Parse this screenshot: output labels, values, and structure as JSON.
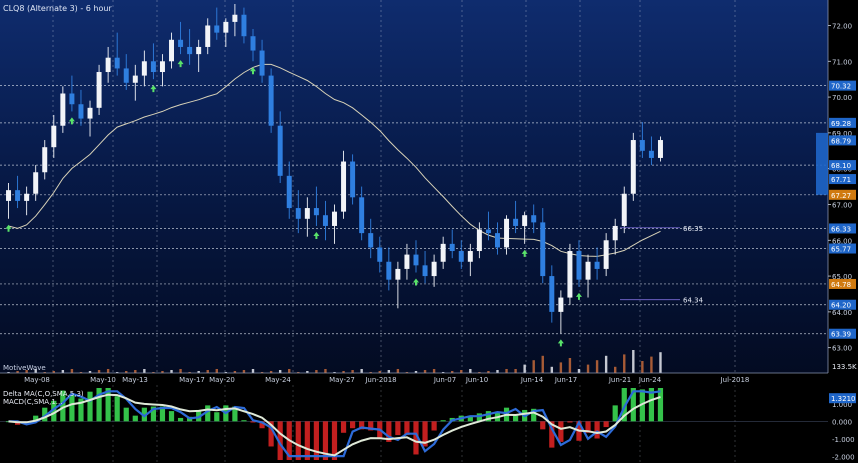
{
  "chart_data": {
    "type": "candlestick",
    "title": "CLQ8 (Alternate 3) - 6 hour",
    "watermark": "MotiveWave",
    "y_axis_ticks": [
      "72.00",
      "71.00",
      "70.00",
      "69.00",
      "68.00",
      "67.00",
      "66.00",
      "65.00",
      "64.00",
      "63.00"
    ],
    "y_range": [
      62.6,
      72.6
    ],
    "x_axis_labels": [
      "May-08",
      "May-10",
      "May-13",
      "May-17",
      "May-20",
      "May-24",
      "May-27",
      "Jun-2018",
      "Jun-07",
      "Jun-10",
      "Jun-14",
      "Jun-17",
      "Jun-21",
      "Jun-24",
      "Jul-2018"
    ],
    "price_labels": [
      {
        "text": "70.32",
        "value": 70.32,
        "color": "#1f66c9"
      },
      {
        "text": "69.28",
        "value": 69.28,
        "color": "#1f66c9"
      },
      {
        "text": "68.79",
        "value": 68.79,
        "color": "#1f66c9"
      },
      {
        "text": "68.10",
        "value": 68.1,
        "color": "#1f66c9"
      },
      {
        "text": "67.71",
        "value": 67.71,
        "color": "#1f66c9"
      },
      {
        "text": "67.27",
        "value": 67.27,
        "color": "#d07a10"
      },
      {
        "text": "66.33",
        "value": 66.33,
        "color": "#1f66c9"
      },
      {
        "text": "65.77",
        "value": 65.77,
        "color": "#1f66c9"
      },
      {
        "text": "64.78",
        "value": 64.78,
        "color": "#d07a10"
      },
      {
        "text": "64.20",
        "value": 64.2,
        "color": "#1f66c9"
      },
      {
        "text": "63.39",
        "value": 63.39,
        "color": "#1f66c9"
      }
    ],
    "horizontal_levels": [
      70.32,
      69.28,
      68.1,
      67.27,
      66.33,
      65.77,
      64.78,
      64.2,
      63.39
    ],
    "annotations": [
      {
        "text": "66.35",
        "value": 66.35
      },
      {
        "text": "64.34",
        "value": 64.34
      }
    ],
    "volume_label": "133.5K",
    "candles": [
      [
        67.1,
        67.6,
        66.6,
        67.4
      ],
      [
        67.4,
        67.8,
        66.9,
        67.1
      ],
      [
        67.1,
        67.5,
        66.7,
        67.3
      ],
      [
        67.3,
        68.1,
        67.1,
        67.9
      ],
      [
        67.9,
        68.8,
        67.7,
        68.6
      ],
      [
        68.6,
        69.5,
        68.3,
        69.2
      ],
      [
        69.2,
        70.3,
        69.0,
        70.1
      ],
      [
        70.1,
        70.6,
        69.6,
        69.8
      ],
      [
        69.8,
        70.2,
        69.2,
        69.4
      ],
      [
        69.4,
        69.9,
        68.9,
        69.7
      ],
      [
        69.7,
        70.9,
        69.5,
        70.7
      ],
      [
        70.7,
        71.4,
        70.4,
        71.1
      ],
      [
        71.1,
        71.8,
        70.6,
        70.8
      ],
      [
        70.8,
        71.2,
        70.2,
        70.4
      ],
      [
        70.4,
        70.9,
        69.9,
        70.6
      ],
      [
        70.6,
        71.3,
        70.3,
        71.0
      ],
      [
        71.0,
        71.5,
        70.5,
        70.7
      ],
      [
        70.7,
        71.2,
        70.3,
        71.0
      ],
      [
        71.0,
        71.8,
        70.8,
        71.6
      ],
      [
        71.6,
        72.1,
        71.2,
        71.4
      ],
      [
        71.4,
        71.9,
        70.9,
        71.2
      ],
      [
        71.2,
        71.6,
        70.7,
        71.4
      ],
      [
        71.4,
        72.2,
        71.2,
        72.0
      ],
      [
        72.0,
        72.5,
        71.6,
        71.8
      ],
      [
        71.8,
        72.2,
        71.4,
        72.1
      ],
      [
        72.1,
        72.6,
        71.7,
        72.3
      ],
      [
        72.3,
        72.5,
        71.5,
        71.7
      ],
      [
        71.7,
        71.9,
        71.0,
        71.3
      ],
      [
        71.3,
        71.6,
        70.4,
        70.6
      ],
      [
        70.6,
        70.8,
        69.0,
        69.2
      ],
      [
        69.2,
        69.6,
        67.6,
        67.8
      ],
      [
        67.8,
        68.2,
        66.6,
        66.9
      ],
      [
        66.9,
        67.4,
        66.2,
        66.6
      ],
      [
        66.6,
        67.2,
        66.1,
        66.9
      ],
      [
        66.9,
        67.5,
        66.4,
        66.7
      ],
      [
        66.7,
        67.1,
        66.0,
        66.4
      ],
      [
        66.4,
        67.0,
        65.9,
        66.8
      ],
      [
        66.8,
        68.5,
        66.6,
        68.2
      ],
      [
        68.2,
        68.4,
        67.0,
        67.2
      ],
      [
        67.2,
        67.5,
        66.0,
        66.2
      ],
      [
        66.2,
        66.6,
        65.5,
        65.8
      ],
      [
        65.8,
        66.1,
        65.1,
        65.4
      ],
      [
        65.4,
        65.8,
        64.6,
        64.9
      ],
      [
        64.9,
        65.4,
        64.1,
        65.2
      ],
      [
        65.2,
        65.9,
        64.9,
        65.6
      ],
      [
        65.6,
        66.0,
        65.1,
        65.3
      ],
      [
        65.3,
        65.7,
        64.8,
        65.0
      ],
      [
        65.0,
        65.6,
        64.7,
        65.4
      ],
      [
        65.4,
        66.1,
        65.2,
        65.9
      ],
      [
        65.9,
        66.3,
        65.5,
        65.7
      ],
      [
        65.7,
        66.0,
        65.2,
        65.4
      ],
      [
        65.4,
        65.9,
        65.0,
        65.7
      ],
      [
        65.7,
        66.5,
        65.5,
        66.3
      ],
      [
        66.3,
        66.8,
        66.0,
        66.2
      ],
      [
        66.2,
        66.5,
        65.6,
        65.8
      ],
      [
        65.8,
        66.7,
        65.6,
        66.6
      ],
      [
        66.6,
        67.1,
        66.2,
        66.4
      ],
      [
        66.4,
        66.8,
        65.9,
        66.7
      ],
      [
        66.7,
        67.0,
        66.2,
        66.5
      ],
      [
        66.5,
        66.9,
        64.8,
        65.0
      ],
      [
        65.0,
        65.3,
        63.7,
        64.0
      ],
      [
        64.0,
        64.6,
        63.4,
        64.4
      ],
      [
        64.4,
        65.9,
        64.2,
        65.7
      ],
      [
        65.7,
        66.0,
        64.7,
        64.9
      ],
      [
        64.9,
        65.6,
        64.4,
        65.4
      ],
      [
        65.4,
        65.8,
        64.9,
        65.2
      ],
      [
        65.2,
        66.2,
        65.0,
        66.0
      ],
      [
        66.0,
        66.6,
        65.6,
        66.4
      ],
      [
        66.4,
        67.5,
        66.2,
        67.3
      ],
      [
        67.3,
        69.0,
        67.1,
        68.8
      ],
      [
        68.8,
        69.3,
        68.3,
        68.5
      ],
      [
        68.5,
        68.9,
        68.1,
        68.3
      ],
      [
        68.3,
        68.9,
        68.2,
        68.8
      ]
    ],
    "macd_range": [
      -2.2,
      1.9
    ],
    "macd_ticks": [
      "1.000",
      "0.000",
      "-1.000",
      "-2.000"
    ],
    "macd_value_label": "1.3210",
    "indicator_title": "Delta MA(C,O,SMA,5,3)",
    "indicator_subtitle": "MACD(C,SMA,1..."
  }
}
